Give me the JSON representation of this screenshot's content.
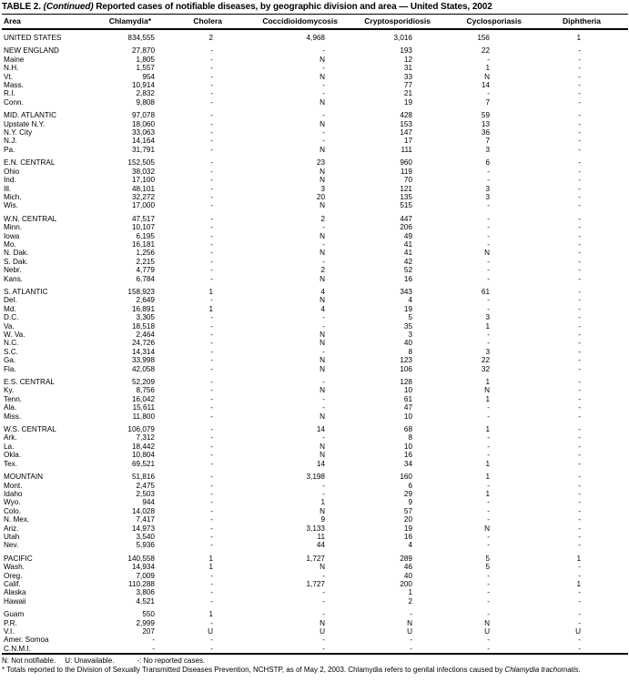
{
  "title": {
    "label": "TABLE 2.",
    "continued": "(Continued)",
    "rest": "Reported cases of notifiable diseases, by geographic division and area — United States, 2002"
  },
  "table": {
    "columns": [
      "Area",
      "Chlamydia*",
      "Cholera",
      "Coccidioidomycosis",
      "Cryptosporidiosis",
      "Cyclosporiasis",
      "Diphtheria"
    ],
    "groups": [
      [
        [
          "UNITED STATES",
          "834,555",
          "2",
          "4,968",
          "3,016",
          "156",
          "1"
        ]
      ],
      [
        [
          "NEW ENGLAND",
          "27,870",
          "-",
          "-",
          "193",
          "22",
          "-"
        ],
        [
          "Maine",
          "1,805",
          "-",
          "N",
          "12",
          "-",
          "-"
        ],
        [
          "N.H.",
          "1,557",
          "-",
          "-",
          "31",
          "1",
          "-"
        ],
        [
          "Vt.",
          "954",
          "-",
          "N",
          "33",
          "N",
          "-"
        ],
        [
          "Mass.",
          "10,914",
          "-",
          "-",
          "77",
          "14",
          "-"
        ],
        [
          "R.I.",
          "2,832",
          "-",
          "-",
          "21",
          "-",
          "-"
        ],
        [
          "Conn.",
          "9,808",
          "-",
          "N",
          "19",
          "7",
          "-"
        ]
      ],
      [
        [
          "MID. ATLANTIC",
          "97,078",
          "-",
          "-",
          "428",
          "59",
          "-"
        ],
        [
          "Upstate N.Y.",
          "18,060",
          "-",
          "N",
          "153",
          "13",
          "-"
        ],
        [
          "N.Y. City",
          "33,063",
          "-",
          "-",
          "147",
          "36",
          "-"
        ],
        [
          "N.J.",
          "14,164",
          "-",
          "-",
          "17",
          "7",
          "-"
        ],
        [
          "Pa.",
          "31,791",
          "-",
          "N",
          "111",
          "3",
          "-"
        ]
      ],
      [
        [
          "E.N. CENTRAL",
          "152,505",
          "-",
          "23",
          "960",
          "6",
          "-"
        ],
        [
          "Ohio",
          "38,032",
          "-",
          "N",
          "119",
          "-",
          "-"
        ],
        [
          "Ind.",
          "17,100",
          "-",
          "N",
          "70",
          "-",
          "-"
        ],
        [
          "Ill.",
          "48,101",
          "-",
          "3",
          "121",
          "3",
          "-"
        ],
        [
          "Mich.",
          "32,272",
          "-",
          "20",
          "135",
          "3",
          "-"
        ],
        [
          "Wis.",
          "17,000",
          "-",
          "N",
          "515",
          "-",
          "-"
        ]
      ],
      [
        [
          "W.N. CENTRAL",
          "47,517",
          "-",
          "2",
          "447",
          "-",
          "-"
        ],
        [
          "Minn.",
          "10,107",
          "-",
          "-",
          "206",
          "-",
          "-"
        ],
        [
          "Iowa",
          "6,195",
          "-",
          "N",
          "49",
          "-",
          "-"
        ],
        [
          "Mo.",
          "16,181",
          "-",
          "-",
          "41",
          "-",
          "-"
        ],
        [
          "N. Dak.",
          "1,256",
          "-",
          "N",
          "41",
          "N",
          "-"
        ],
        [
          "S. Dak.",
          "2,215",
          "-",
          "-",
          "42",
          "-",
          "-"
        ],
        [
          "Nebr.",
          "4,779",
          "-",
          "2",
          "52",
          "-",
          "-"
        ],
        [
          "Kans.",
          "6,784",
          "-",
          "N",
          "16",
          "-",
          "-"
        ]
      ],
      [
        [
          "S. ATLANTIC",
          "158,923",
          "1",
          "4",
          "343",
          "61",
          "-"
        ],
        [
          "Del.",
          "2,649",
          "-",
          "N",
          "4",
          "-",
          "-"
        ],
        [
          "Md.",
          "16,891",
          "1",
          "4",
          "19",
          "-",
          "-"
        ],
        [
          "D.C.",
          "3,305",
          "-",
          "-",
          "5",
          "3",
          "-"
        ],
        [
          "Va.",
          "18,518",
          "-",
          "-",
          "35",
          "1",
          "-"
        ],
        [
          "W. Va.",
          "2,464",
          "-",
          "N",
          "3",
          "-",
          "-"
        ],
        [
          "N.C.",
          "24,726",
          "-",
          "N",
          "40",
          "-",
          "-"
        ],
        [
          "S.C.",
          "14,314",
          "-",
          "-",
          "8",
          "3",
          "-"
        ],
        [
          "Ga.",
          "33,998",
          "-",
          "N",
          "123",
          "22",
          "-"
        ],
        [
          "Fla.",
          "42,058",
          "-",
          "N",
          "106",
          "32",
          "-"
        ]
      ],
      [
        [
          "E.S. CENTRAL",
          "52,209",
          "-",
          "-",
          "128",
          "1",
          "-"
        ],
        [
          "Ky.",
          "8,756",
          "-",
          "N",
          "10",
          "N",
          "-"
        ],
        [
          "Tenn.",
          "16,042",
          "-",
          "-",
          "61",
          "1",
          "-"
        ],
        [
          "Ala.",
          "15,611",
          "-",
          "-",
          "47",
          "-",
          "-"
        ],
        [
          "Miss.",
          "11,800",
          "-",
          "N",
          "10",
          "-",
          "-"
        ]
      ],
      [
        [
          "W.S. CENTRAL",
          "106,079",
          "-",
          "14",
          "68",
          "1",
          "-"
        ],
        [
          "Ark.",
          "7,312",
          "-",
          "-",
          "8",
          "-",
          "-"
        ],
        [
          "La.",
          "18,442",
          "-",
          "N",
          "10",
          "-",
          "-"
        ],
        [
          "Okla.",
          "10,804",
          "-",
          "N",
          "16",
          "-",
          "-"
        ],
        [
          "Tex.",
          "69,521",
          "-",
          "14",
          "34",
          "1",
          "-"
        ]
      ],
      [
        [
          "MOUNTAIN",
          "51,816",
          "-",
          "3,198",
          "160",
          "1",
          "-"
        ],
        [
          "Mont.",
          "2,475",
          "-",
          "-",
          "6",
          "-",
          "-"
        ],
        [
          "Idaho",
          "2,503",
          "-",
          "-",
          "29",
          "1",
          "-"
        ],
        [
          "Wyo.",
          "944",
          "-",
          "1",
          "9",
          "-",
          "-"
        ],
        [
          "Colo.",
          "14,028",
          "-",
          "N",
          "57",
          "-",
          "-"
        ],
        [
          "N. Mex.",
          "7,417",
          "-",
          "9",
          "20",
          "-",
          "-"
        ],
        [
          "Ariz.",
          "14,973",
          "-",
          "3,133",
          "19",
          "N",
          "-"
        ],
        [
          "Utah",
          "3,540",
          "-",
          "11",
          "16",
          "-",
          "-"
        ],
        [
          "Nev.",
          "5,936",
          "-",
          "44",
          "4",
          "-",
          "-"
        ]
      ],
      [
        [
          "PACIFIC",
          "140,558",
          "1",
          "1,727",
          "289",
          "5",
          "1"
        ],
        [
          "Wash.",
          "14,934",
          "1",
          "N",
          "46",
          "5",
          "-"
        ],
        [
          "Oreg.",
          "7,009",
          "-",
          "-",
          "40",
          "-",
          "-"
        ],
        [
          "Calif.",
          "110,288",
          "-",
          "1,727",
          "200",
          "-",
          "1"
        ],
        [
          "Alaska",
          "3,806",
          "-",
          "-",
          "1",
          "-",
          "-"
        ],
        [
          "Hawaii",
          "4,521",
          "-",
          "-",
          "2",
          "-",
          "-"
        ]
      ],
      [
        [
          "Guam",
          "550",
          "1",
          "-",
          "-",
          "-",
          "-"
        ],
        [
          "P.R.",
          "2,999",
          "-",
          "N",
          "N",
          "N",
          "-"
        ],
        [
          "V.I.",
          "207",
          "U",
          "U",
          "U",
          "U",
          "U"
        ],
        [
          "Amer. Somoa",
          "-",
          "-",
          "-",
          "-",
          "-",
          "-"
        ],
        [
          "C.N.M.I.",
          "-",
          "-",
          "-",
          "-",
          "-",
          "-"
        ]
      ]
    ]
  },
  "footnotes": {
    "legend_n": "N: Not notifiable.",
    "legend_u": "U: Unavailable.",
    "legend_dash": "-: No reported cases.",
    "note_text": "* Totals reported to the Division of Sexually Transmitted Diseases Prevention, NCHSTP, as of May 2, 2003. Chlamydia refers to genital infections caused by ",
    "note_italic": "Chlamydia trachomatis."
  }
}
